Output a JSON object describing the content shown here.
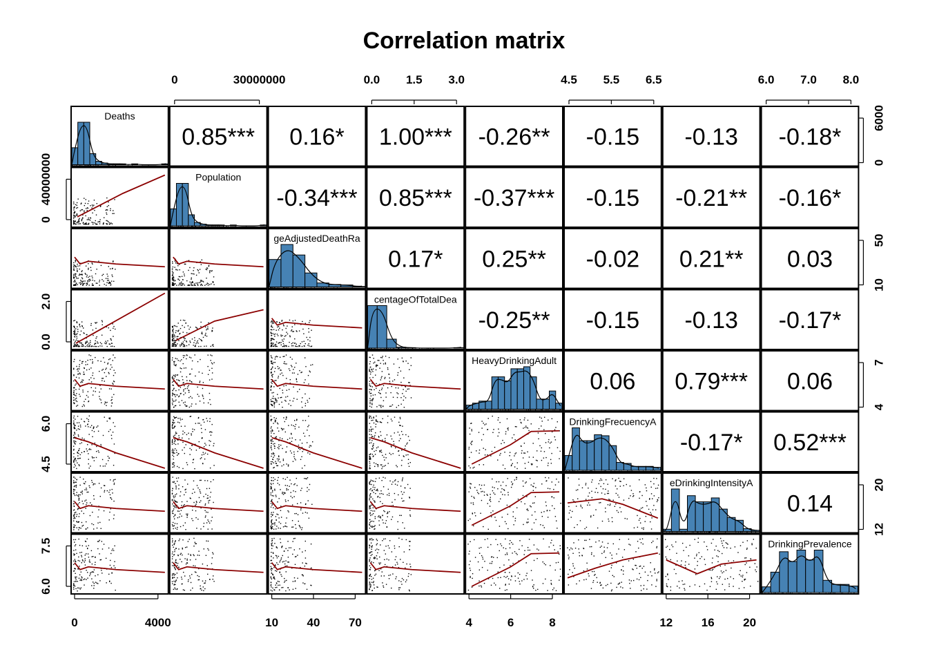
{
  "chart_data": {
    "type": "scatter-matrix",
    "title": "Correlation matrix",
    "variables": [
      "Deaths",
      "Population",
      "AgeAdjustedDeathRate",
      "PercentageOfTotalDeaths",
      "HeavyDrinkingAdults",
      "DrinkingFrecuencyAdults",
      "BingeDrinkingIntensityAdults",
      "BingeDrinkingPrevalence"
    ],
    "panel_labels": [
      "Deaths",
      "Population",
      "geAdjustedDeathRa",
      "centageOfTotalDea",
      "HeavyDrinkingAdult",
      "DrinkingFrecuencyA",
      "eDrinkingIntensityA",
      "DrinkingPrevalence"
    ],
    "correlations": [
      {
        "row": 1,
        "col": 2,
        "label": "0.85***"
      },
      {
        "row": 1,
        "col": 3,
        "label": "0.16*"
      },
      {
        "row": 1,
        "col": 4,
        "label": "1.00***"
      },
      {
        "row": 1,
        "col": 5,
        "label": "-0.26**"
      },
      {
        "row": 1,
        "col": 6,
        "label": "-0.15"
      },
      {
        "row": 1,
        "col": 7,
        "label": "-0.13"
      },
      {
        "row": 1,
        "col": 8,
        "label": "-0.18*"
      },
      {
        "row": 2,
        "col": 3,
        "label": "-0.34***"
      },
      {
        "row": 2,
        "col": 4,
        "label": "0.85***"
      },
      {
        "row": 2,
        "col": 5,
        "label": "-0.37***"
      },
      {
        "row": 2,
        "col": 6,
        "label": "-0.15"
      },
      {
        "row": 2,
        "col": 7,
        "label": "-0.21**"
      },
      {
        "row": 2,
        "col": 8,
        "label": "-0.16*"
      },
      {
        "row": 3,
        "col": 4,
        "label": "0.17*"
      },
      {
        "row": 3,
        "col": 5,
        "label": "0.25**"
      },
      {
        "row": 3,
        "col": 6,
        "label": "-0.02"
      },
      {
        "row": 3,
        "col": 7,
        "label": "0.21**"
      },
      {
        "row": 3,
        "col": 8,
        "label": "0.03"
      },
      {
        "row": 4,
        "col": 5,
        "label": "-0.25**"
      },
      {
        "row": 4,
        "col": 6,
        "label": "-0.15"
      },
      {
        "row": 4,
        "col": 7,
        "label": "-0.13"
      },
      {
        "row": 4,
        "col": 8,
        "label": "-0.17*"
      },
      {
        "row": 5,
        "col": 6,
        "label": "0.06"
      },
      {
        "row": 5,
        "col": 7,
        "label": "0.79***"
      },
      {
        "row": 5,
        "col": 8,
        "label": "0.06"
      },
      {
        "row": 6,
        "col": 7,
        "label": "-0.17*"
      },
      {
        "row": 6,
        "col": 8,
        "label": "0.52***"
      },
      {
        "row": 7,
        "col": 8,
        "label": "0.14"
      }
    ],
    "axis_ticks": {
      "top": [
        {
          "col": 2,
          "labels": [
            "0",
            "30000000"
          ]
        },
        {
          "col": 4,
          "labels": [
            "0.0",
            "1.5",
            "3.0"
          ]
        },
        {
          "col": 6,
          "labels": [
            "4.5",
            "5.5",
            "6.5"
          ]
        },
        {
          "col": 8,
          "labels": [
            "6.0",
            "7.0",
            "8.0"
          ]
        }
      ],
      "bottom": [
        {
          "col": 1,
          "labels": [
            "0",
            "4000"
          ]
        },
        {
          "col": 3,
          "labels": [
            "10",
            "40",
            "70"
          ]
        },
        {
          "col": 5,
          "labels": [
            "4",
            "6",
            "8"
          ]
        },
        {
          "col": 7,
          "labels": [
            "12",
            "16",
            "20"
          ]
        }
      ],
      "left": [
        {
          "row": 2,
          "labels": [
            "0",
            "40000000"
          ]
        },
        {
          "row": 4,
          "labels": [
            "0.0",
            "2.0"
          ]
        },
        {
          "row": 6,
          "labels": [
            "4.5",
            "6.0"
          ]
        },
        {
          "row": 8,
          "labels": [
            "6.0",
            "7.5"
          ]
        }
      ],
      "right": [
        {
          "row": 1,
          "labels": [
            "0",
            "6000"
          ]
        },
        {
          "row": 3,
          "labels": [
            "10",
            "50"
          ]
        },
        {
          "row": 5,
          "labels": [
            "4",
            "7"
          ]
        },
        {
          "row": 7,
          "labels": [
            "12",
            "20"
          ]
        }
      ]
    },
    "histograms": [
      {
        "var": "Deaths",
        "counts": [
          20,
          50,
          50,
          13,
          4,
          2,
          1,
          1,
          1,
          0,
          1,
          0,
          0,
          0,
          0,
          1
        ]
      },
      {
        "var": "Population",
        "counts": [
          20,
          50,
          50,
          13,
          4,
          2,
          1,
          1,
          1,
          0,
          1,
          0,
          0,
          0,
          0,
          1
        ]
      },
      {
        "var": "AgeAdjustedDeathRate",
        "counts": [
          55,
          85,
          64,
          28,
          8,
          5,
          4,
          1
        ]
      },
      {
        "var": "PercentageOfTotalDeaths",
        "counts": [
          95,
          95,
          20,
          2,
          1,
          0,
          0,
          0,
          0,
          1
        ]
      },
      {
        "var": "HeavyDrinkingAdults",
        "counts": [
          2,
          3,
          4,
          4,
          16,
          16,
          14,
          20,
          20,
          21,
          16,
          5,
          5,
          9,
          3
        ]
      },
      {
        "var": "DrinkingFrecuencyAdults",
        "counts": [
          15,
          43,
          30,
          30,
          36,
          35,
          25,
          8,
          7,
          4,
          4,
          4,
          3
        ]
      },
      {
        "var": "BingeDrinkingIntensityAdults",
        "counts": [
          4,
          76,
          4,
          64,
          53,
          53,
          60,
          40,
          25,
          20,
          5,
          2
        ]
      },
      {
        "var": "BingeDrinkingPrevalence",
        "counts": [
          7,
          25,
          50,
          38,
          52,
          40,
          52,
          15,
          10,
          10,
          8
        ]
      }
    ],
    "scatter_points_per_panel": 160,
    "smoother_color": "#8b0000",
    "histogram_fill": "#4682b4",
    "grid": false,
    "legend": "none"
  }
}
